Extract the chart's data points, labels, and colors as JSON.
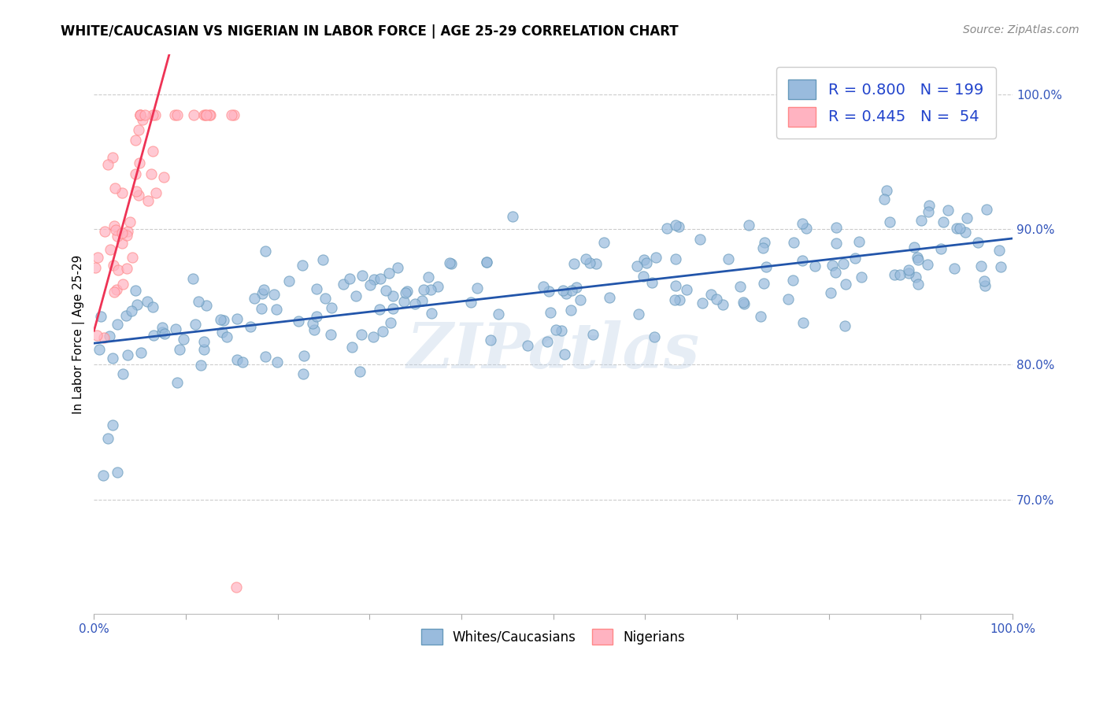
{
  "title": "WHITE/CAUCASIAN VS NIGERIAN IN LABOR FORCE | AGE 25-29 CORRELATION CHART",
  "source": "Source: ZipAtlas.com",
  "ylabel": "In Labor Force | Age 25-29",
  "xlim": [
    0.0,
    1.0
  ],
  "ylim": [
    0.615,
    1.03
  ],
  "xtick_vals": [
    0.0,
    0.1,
    0.2,
    0.3,
    0.4,
    0.5,
    0.6,
    0.7,
    0.8,
    0.9,
    1.0
  ],
  "ytick_vals_right": [
    1.0,
    0.9,
    0.8,
    0.7
  ],
  "ytick_labels_right": [
    "100.0%",
    "90.0%",
    "80.0%",
    "70.0%"
  ],
  "blue_R": 0.8,
  "blue_N": 199,
  "pink_R": 0.445,
  "pink_N": 54,
  "blue_color": "#99BBDD",
  "pink_color": "#FFB3C1",
  "blue_edge_color": "#6699BB",
  "pink_edge_color": "#FF8888",
  "blue_line_color": "#2255AA",
  "pink_line_color": "#EE3355",
  "watermark": "ZIPatlas",
  "blue_seed": 42,
  "pink_seed": 77,
  "grid_color": "#CCCCCC",
  "title_fontsize": 12,
  "source_fontsize": 10,
  "tick_fontsize": 11,
  "ylabel_fontsize": 11
}
